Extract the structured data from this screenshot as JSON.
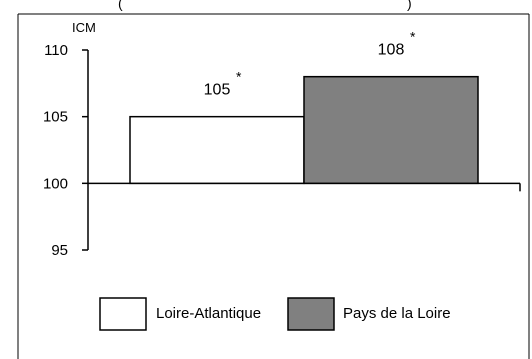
{
  "chart_data": {
    "type": "bar",
    "header_fragment": "(",
    "header_fragment_right": ")",
    "ylabel": "ICM",
    "ylim": [
      95,
      110
    ],
    "yticks": [
      110,
      105,
      100,
      95
    ],
    "baseline": 100,
    "series": [
      {
        "name": "Loire-Atlantique",
        "value": 105,
        "label": "105",
        "marker": "*",
        "color": "#ffffff"
      },
      {
        "name": "Pays de la Loire",
        "value": 108,
        "label": "108",
        "marker": "*",
        "color": "#808080"
      }
    ],
    "legend_position": "bottom"
  }
}
